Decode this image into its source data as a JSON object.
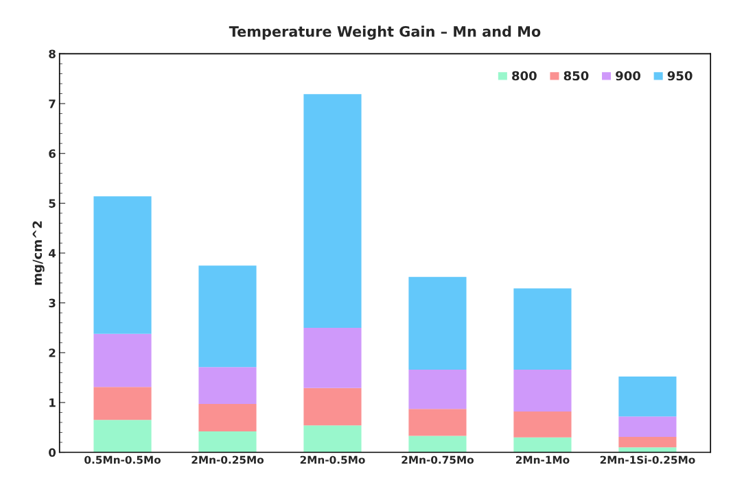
{
  "chart_data": {
    "type": "bar",
    "title": "Temperature Weight Gain – Mn and Mo",
    "ylabel": "mg/cm^2",
    "categories": [
      "0.5Mn-0.5Mo",
      "2Mn-0.25Mo",
      "2Mn-0.5Mo",
      "2Mn-0.75Mo",
      "2Mn-1Mo",
      "2Mn-1Si-0.25Mo"
    ],
    "stacked": true,
    "series": [
      {
        "name": "800",
        "color": "#99f7cc",
        "values": [
          0.65,
          0.42,
          0.54,
          0.33,
          0.3,
          0.1
        ]
      },
      {
        "name": "850",
        "color": "#fa9191",
        "values": [
          0.66,
          0.55,
          0.75,
          0.54,
          0.52,
          0.21
        ]
      },
      {
        "name": "900",
        "color": "#cf99fa",
        "values": [
          1.07,
          0.74,
          1.21,
          0.79,
          0.84,
          0.41
        ]
      },
      {
        "name": "950",
        "color": "#63c8fa",
        "values": [
          2.76,
          2.04,
          4.69,
          1.86,
          1.63,
          0.8
        ]
      }
    ],
    "ylim": [
      0,
      8
    ],
    "yticks": [
      0,
      1,
      2,
      3,
      4,
      5,
      6,
      7,
      8
    ],
    "grid": false,
    "legend": "top right"
  }
}
